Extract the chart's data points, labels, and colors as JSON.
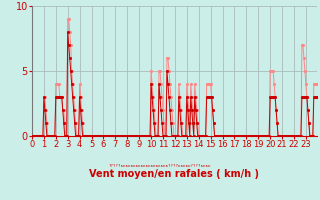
{
  "xlabel": "Vent moyen/en rafales ( km/h )",
  "background_color": "#cceee8",
  "grid_color": "#aabbbb",
  "line_color_avg": "#cc0000",
  "line_color_gust": "#ff8888",
  "ylim": [
    0,
    10
  ],
  "xlim": [
    0,
    287
  ],
  "yticks": [
    0,
    5,
    10
  ],
  "xtick_positions": [
    0,
    12,
    24,
    36,
    48,
    60,
    72,
    84,
    96,
    108,
    120,
    132,
    144,
    156,
    168,
    180,
    192,
    204,
    216,
    228,
    240,
    252,
    264,
    276
  ],
  "xtick_labels": [
    "0",
    "1",
    "2",
    "3",
    "4",
    "5",
    "6",
    "7",
    "8",
    "9",
    "10",
    "11",
    "12",
    "13",
    "14",
    "15",
    "16",
    "17",
    "18",
    "19",
    "20",
    "21",
    "22",
    "23"
  ],
  "tick_fontsize": 6,
  "label_fontsize": 7,
  "avg_wind": [
    0,
    0,
    0,
    0,
    0,
    0,
    0,
    0,
    0,
    0,
    0,
    0,
    3,
    2,
    1,
    0,
    0,
    0,
    0,
    0,
    0,
    0,
    0,
    0,
    3,
    3,
    3,
    3,
    3,
    3,
    3,
    2,
    1,
    0,
    0,
    0,
    8,
    7,
    6,
    5,
    4,
    3,
    2,
    1,
    0,
    0,
    0,
    0,
    3,
    2,
    1,
    0,
    0,
    0,
    0,
    0,
    0,
    0,
    0,
    0,
    0,
    0,
    0,
    0,
    0,
    0,
    0,
    0,
    0,
    0,
    0,
    0,
    0,
    0,
    0,
    0,
    0,
    0,
    0,
    0,
    0,
    0,
    0,
    0,
    0,
    0,
    0,
    0,
    0,
    0,
    0,
    0,
    0,
    0,
    0,
    0,
    0,
    0,
    0,
    0,
    0,
    0,
    0,
    0,
    0,
    0,
    0,
    0,
    0,
    0,
    0,
    0,
    0,
    0,
    0,
    0,
    0,
    0,
    0,
    0,
    4,
    3,
    2,
    1,
    0,
    0,
    0,
    0,
    4,
    3,
    2,
    1,
    0,
    0,
    0,
    0,
    5,
    4,
    3,
    2,
    1,
    0,
    0,
    0,
    0,
    0,
    0,
    0,
    3,
    2,
    1,
    0,
    0,
    0,
    0,
    0,
    3,
    2,
    1,
    0,
    3,
    2,
    1,
    0,
    3,
    2,
    1,
    0,
    0,
    0,
    0,
    0,
    0,
    0,
    0,
    0,
    3,
    3,
    3,
    3,
    3,
    3,
    2,
    1,
    0,
    0,
    0,
    0,
    0,
    0,
    0,
    0,
    0,
    0,
    0,
    0,
    0,
    0,
    0,
    0,
    0,
    0,
    0,
    0,
    0,
    0,
    0,
    0,
    0,
    0,
    0,
    0,
    0,
    0,
    0,
    0,
    0,
    0,
    0,
    0,
    0,
    0,
    0,
    0,
    0,
    0,
    0,
    0,
    0,
    0,
    0,
    0,
    0,
    0,
    0,
    0,
    0,
    0,
    0,
    0,
    3,
    3,
    3,
    3,
    3,
    3,
    2,
    1,
    0,
    0,
    0,
    0,
    0,
    0,
    0,
    0,
    0,
    0,
    0,
    0,
    0,
    0,
    0,
    0,
    0,
    0,
    0,
    0,
    0,
    0,
    0,
    0,
    3,
    3,
    3,
    3,
    3,
    3,
    2,
    1,
    0,
    0,
    0,
    0,
    3,
    3,
    3,
    3
  ],
  "gust_wind": [
    0,
    0,
    0,
    0,
    0,
    0,
    0,
    0,
    0,
    0,
    0,
    0,
    3,
    3,
    2,
    1,
    0,
    0,
    0,
    0,
    0,
    0,
    0,
    0,
    4,
    4,
    4,
    4,
    3,
    3,
    3,
    2,
    2,
    1,
    0,
    0,
    9,
    9,
    8,
    7,
    5,
    4,
    3,
    2,
    1,
    0,
    0,
    0,
    4,
    3,
    2,
    1,
    0,
    0,
    0,
    0,
    0,
    0,
    0,
    0,
    0,
    0,
    0,
    0,
    0,
    0,
    0,
    0,
    0,
    0,
    0,
    0,
    0,
    0,
    0,
    0,
    0,
    0,
    0,
    0,
    0,
    0,
    0,
    0,
    0,
    0,
    0,
    0,
    0,
    0,
    0,
    0,
    0,
    0,
    0,
    0,
    0,
    0,
    0,
    0,
    0,
    0,
    0,
    0,
    0,
    0,
    0,
    0,
    0,
    0,
    0,
    0,
    0,
    0,
    0,
    0,
    0,
    0,
    0,
    0,
    5,
    4,
    3,
    2,
    1,
    0,
    0,
    0,
    5,
    5,
    4,
    3,
    2,
    1,
    0,
    0,
    6,
    6,
    5,
    4,
    3,
    2,
    1,
    0,
    0,
    0,
    0,
    0,
    4,
    3,
    2,
    1,
    0,
    0,
    0,
    0,
    4,
    3,
    2,
    1,
    4,
    3,
    2,
    1,
    4,
    3,
    2,
    1,
    0,
    0,
    0,
    0,
    0,
    0,
    0,
    0,
    4,
    4,
    4,
    4,
    4,
    3,
    2,
    1,
    0,
    0,
    0,
    0,
    0,
    0,
    0,
    0,
    0,
    0,
    0,
    0,
    0,
    0,
    0,
    0,
    0,
    0,
    0,
    0,
    0,
    0,
    0,
    0,
    0,
    0,
    0,
    0,
    0,
    0,
    0,
    0,
    0,
    0,
    0,
    0,
    0,
    0,
    0,
    0,
    0,
    0,
    0,
    0,
    0,
    0,
    0,
    0,
    0,
    0,
    0,
    0,
    0,
    0,
    0,
    0,
    5,
    5,
    5,
    5,
    4,
    3,
    2,
    1,
    0,
    0,
    0,
    0,
    0,
    0,
    0,
    0,
    0,
    0,
    0,
    0,
    0,
    0,
    0,
    0,
    0,
    0,
    0,
    0,
    0,
    0,
    0,
    0,
    7,
    7,
    6,
    5,
    4,
    3,
    2,
    1,
    0,
    0,
    0,
    0,
    4,
    4,
    4,
    4
  ],
  "wind_dir_text": "?????ккккккккккккккккккк????ккккк????кккк"
}
